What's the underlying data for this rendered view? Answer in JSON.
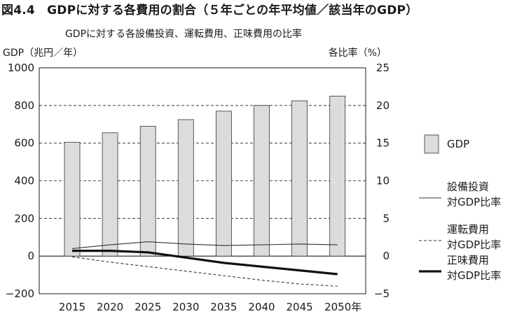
{
  "figure_title": "図4.4　GDPに対する各費用の割合（５年ごとの年平均値／該当年のGDP）",
  "chart_data": {
    "type": "bar",
    "subtitle": "GDPに対する各設備投資、運転費用、正味費用の比率",
    "left_axis_label": "GDP（兆円／年）",
    "right_axis_label": "各比率（%）",
    "categories": [
      "2015",
      "2020",
      "2025",
      "2030",
      "2035",
      "2040",
      "2045",
      "2050年"
    ],
    "left_ylim": [
      -200,
      1000
    ],
    "left_ticks": [
      "−200",
      "0",
      "200",
      "400",
      "600",
      "800",
      "1000"
    ],
    "left_tick_values": [
      -200,
      0,
      200,
      400,
      600,
      800,
      1000
    ],
    "right_ylim": [
      -5,
      25
    ],
    "right_ticks": [
      "−5",
      "0",
      "5",
      "10",
      "15",
      "20",
      "25"
    ],
    "right_tick_values": [
      -5,
      0,
      5,
      10,
      15,
      20,
      25
    ],
    "grid": "dashed horizontal",
    "legend_position": "right",
    "series": [
      {
        "name": "GDP",
        "kind": "bar",
        "axis": "left",
        "color": "#dcdcdc",
        "values": [
          605,
          655,
          690,
          725,
          770,
          800,
          825,
          850
        ]
      },
      {
        "name": "設備投資対GDP比率",
        "kind": "line",
        "style": "thin",
        "axis": "right",
        "values": [
          1.0,
          1.5,
          1.9,
          1.6,
          1.4,
          1.5,
          1.6,
          1.5
        ]
      },
      {
        "name": "運転費用対GDP比率",
        "kind": "line",
        "style": "dashed",
        "axis": "right",
        "values": [
          -0.1,
          -0.8,
          -1.4,
          -2.0,
          -2.6,
          -3.2,
          -3.7,
          -4.0
        ]
      },
      {
        "name": "正味費用対GDP比率",
        "kind": "line",
        "style": "thick",
        "axis": "right",
        "values": [
          0.7,
          0.7,
          0.5,
          -0.2,
          -0.9,
          -1.4,
          -1.9,
          -2.4
        ]
      }
    ],
    "legend": [
      {
        "label_lines": [
          "GDP"
        ],
        "kind": "bar"
      },
      {
        "label_lines": [
          "設備投資",
          "対GDP比率"
        ],
        "kind": "thin"
      },
      {
        "label_lines": [
          "運転費用",
          "対GDP比率"
        ],
        "kind": "dashed"
      },
      {
        "label_lines": [
          "正味費用",
          "対GDP比率"
        ],
        "kind": "thick"
      }
    ]
  }
}
